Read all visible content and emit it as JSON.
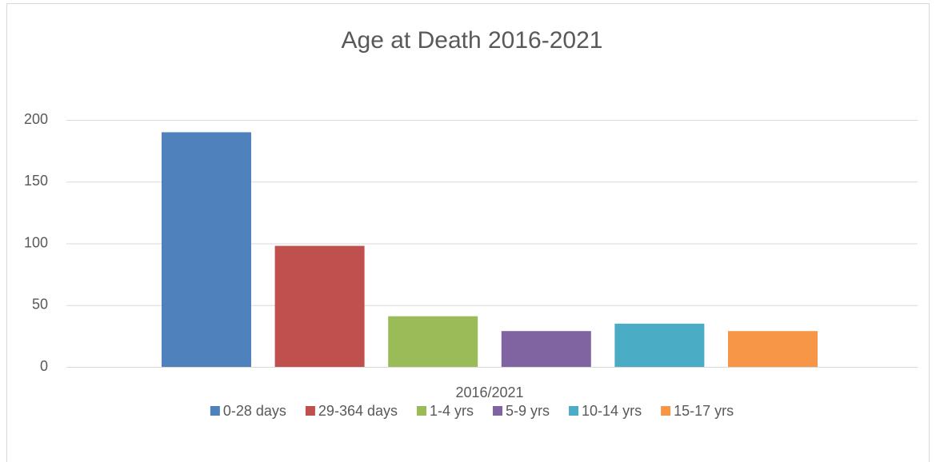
{
  "chart_data": {
    "type": "bar",
    "title": "Age at Death 2016-2021",
    "categories": [
      "2016/2021"
    ],
    "series": [
      {
        "name": "0-28 days",
        "color": "#4f81bd",
        "values": [
          190
        ]
      },
      {
        "name": "29-364 days",
        "color": "#c0504d",
        "values": [
          98
        ]
      },
      {
        "name": "1-4 yrs",
        "color": "#9bbb59",
        "values": [
          41
        ]
      },
      {
        "name": "5-9 yrs",
        "color": "#8064a2",
        "values": [
          29
        ]
      },
      {
        "name": "10-14 yrs",
        "color": "#4bacc6",
        "values": [
          35
        ]
      },
      {
        "name": "15-17 yrs",
        "color": "#f79646",
        "values": [
          29
        ]
      }
    ],
    "ylim": [
      0,
      200
    ],
    "yticks": [
      0,
      50,
      100,
      150,
      200
    ],
    "grid": true,
    "legend": "bottom"
  }
}
